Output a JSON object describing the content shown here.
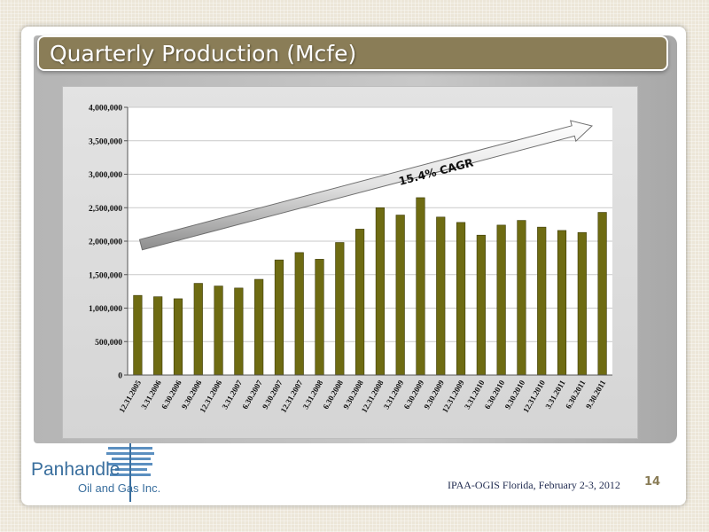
{
  "slide": {
    "title": "Quarterly Production (Mcfe)",
    "footer": "IPAA-OGIS Florida, February 2-3, 2012",
    "page_number": "14"
  },
  "logo": {
    "name": "Panhandle",
    "subtitle": "Oil and Gas Inc."
  },
  "colors": {
    "bar_fill": "#6e6b12",
    "title_bar": "#8a7d57",
    "accent_blue": "#3a6f9e"
  },
  "chart_data": {
    "type": "bar",
    "categories": [
      "12.31.2005",
      "3.31.2006",
      "6.30.2006",
      "9.30.2006",
      "12.31.2006",
      "3.31.2007",
      "6.30.2007",
      "9.30.2007",
      "12.31.2007",
      "3.31.2008",
      "6.30.2008",
      "9.30.2008",
      "12.31.2008",
      "3.31.2009",
      "6.30.2009",
      "9.30.2009",
      "12.31.2009",
      "3.31.2010",
      "6.30.2010",
      "9.30.2010",
      "12.31.2010",
      "3.31.2011",
      "6.30.2011",
      "9.30.2011"
    ],
    "values": [
      1190000,
      1170000,
      1140000,
      1370000,
      1330000,
      1300000,
      1430000,
      1720000,
      1830000,
      1730000,
      1980000,
      2180000,
      2500000,
      2390000,
      2650000,
      2360000,
      2280000,
      2090000,
      2240000,
      2310000,
      2210000,
      2160000,
      2130000,
      2430000
    ],
    "yticks": [
      "0",
      "500,000",
      "1,000,000",
      "1,500,000",
      "2,000,000",
      "2,500,000",
      "3,000,000",
      "3,500,000",
      "4,000,000"
    ],
    "ylim": [
      0,
      4000000
    ],
    "grid": true,
    "annotation": "15.4% CAGR"
  }
}
